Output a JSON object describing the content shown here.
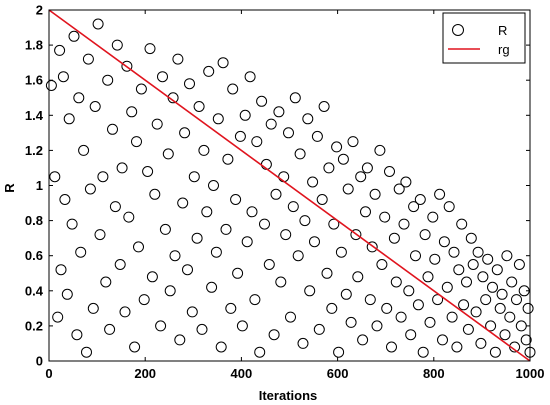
{
  "chart_data": {
    "type": "scatter",
    "title": "",
    "xlabel": "Iterations",
    "ylabel": "R",
    "xlim": [
      0,
      1000
    ],
    "ylim": [
      0,
      2
    ],
    "x_ticks": [
      0,
      200,
      400,
      600,
      800,
      1000
    ],
    "y_ticks": [
      0,
      0.2,
      0.4,
      0.6,
      0.8,
      1,
      1.2,
      1.4,
      1.6,
      1.8,
      2
    ],
    "y_tick_labels": [
      "0",
      "0.2",
      "0.4",
      "0.6",
      "0.8",
      "1",
      "1.2",
      "1.4",
      "1.6",
      "1.8",
      "2"
    ],
    "grid": false,
    "legend": {
      "position": "top-right",
      "entries": [
        "R",
        "rg"
      ]
    },
    "series": [
      {
        "name": "R",
        "kind": "scatter",
        "marker": "open-circle",
        "color": "#000000",
        "points": [
          [
            5,
            1.57
          ],
          [
            12,
            1.05
          ],
          [
            18,
            0.25
          ],
          [
            22,
            1.77
          ],
          [
            25,
            0.52
          ],
          [
            30,
            1.62
          ],
          [
            33,
            0.92
          ],
          [
            38,
            0.38
          ],
          [
            42,
            1.38
          ],
          [
            48,
            0.78
          ],
          [
            52,
            1.85
          ],
          [
            58,
            0.15
          ],
          [
            62,
            1.5
          ],
          [
            66,
            0.62
          ],
          [
            72,
            1.2
          ],
          [
            78,
            0.05
          ],
          [
            82,
            1.72
          ],
          [
            86,
            0.98
          ],
          [
            92,
            0.3
          ],
          [
            96,
            1.45
          ],
          [
            102,
            1.92
          ],
          [
            106,
            0.72
          ],
          [
            112,
            1.05
          ],
          [
            118,
            0.45
          ],
          [
            122,
            1.6
          ],
          [
            126,
            0.18
          ],
          [
            132,
            1.32
          ],
          [
            138,
            0.88
          ],
          [
            142,
            1.8
          ],
          [
            148,
            0.55
          ],
          [
            152,
            1.1
          ],
          [
            158,
            0.28
          ],
          [
            162,
            1.68
          ],
          [
            166,
            0.82
          ],
          [
            172,
            1.42
          ],
          [
            178,
            0.08
          ],
          [
            182,
            1.25
          ],
          [
            186,
            0.65
          ],
          [
            192,
            1.55
          ],
          [
            198,
            0.35
          ],
          [
            205,
            1.08
          ],
          [
            210,
            1.78
          ],
          [
            215,
            0.48
          ],
          [
            220,
            0.95
          ],
          [
            225,
            1.35
          ],
          [
            232,
            0.2
          ],
          [
            236,
            1.62
          ],
          [
            242,
            0.75
          ],
          [
            248,
            1.18
          ],
          [
            252,
            0.4
          ],
          [
            258,
            1.5
          ],
          [
            262,
            0.6
          ],
          [
            268,
            1.72
          ],
          [
            272,
            0.12
          ],
          [
            278,
            0.9
          ],
          [
            282,
            1.3
          ],
          [
            288,
            0.52
          ],
          [
            292,
            1.58
          ],
          [
            298,
            0.28
          ],
          [
            302,
            1.05
          ],
          [
            308,
            0.7
          ],
          [
            312,
            1.45
          ],
          [
            318,
            0.18
          ],
          [
            322,
            1.2
          ],
          [
            328,
            0.85
          ],
          [
            332,
            1.65
          ],
          [
            338,
            0.42
          ],
          [
            342,
            1.0
          ],
          [
            348,
            0.62
          ],
          [
            352,
            1.38
          ],
          [
            358,
            0.08
          ],
          [
            362,
            1.7
          ],
          [
            368,
            0.75
          ],
          [
            372,
            1.15
          ],
          [
            378,
            0.3
          ],
          [
            382,
            1.55
          ],
          [
            388,
            0.92
          ],
          [
            392,
            0.5
          ],
          [
            398,
            1.28
          ],
          [
            402,
            0.2
          ],
          [
            408,
            1.4
          ],
          [
            412,
            0.68
          ],
          [
            418,
            1.62
          ],
          [
            422,
            0.85
          ],
          [
            428,
            0.35
          ],
          [
            432,
            1.25
          ],
          [
            438,
            0.05
          ],
          [
            442,
            1.48
          ],
          [
            448,
            0.78
          ],
          [
            452,
            1.12
          ],
          [
            458,
            0.55
          ],
          [
            462,
            1.35
          ],
          [
            468,
            0.15
          ],
          [
            472,
            0.95
          ],
          [
            478,
            1.42
          ],
          [
            482,
            0.45
          ],
          [
            488,
            1.05
          ],
          [
            492,
            0.72
          ],
          [
            498,
            1.3
          ],
          [
            502,
            0.25
          ],
          [
            508,
            0.88
          ],
          [
            512,
            1.5
          ],
          [
            518,
            0.6
          ],
          [
            522,
            1.18
          ],
          [
            528,
            0.1
          ],
          [
            532,
            0.8
          ],
          [
            538,
            1.38
          ],
          [
            542,
            0.4
          ],
          [
            548,
            1.02
          ],
          [
            552,
            0.68
          ],
          [
            558,
            1.28
          ],
          [
            562,
            0.18
          ],
          [
            568,
            0.92
          ],
          [
            572,
            1.45
          ],
          [
            578,
            0.5
          ],
          [
            582,
            1.1
          ],
          [
            588,
            0.3
          ],
          [
            592,
            0.78
          ],
          [
            598,
            1.22
          ],
          [
            602,
            0.05
          ],
          [
            608,
            0.62
          ],
          [
            612,
            1.15
          ],
          [
            618,
            0.38
          ],
          [
            622,
            0.98
          ],
          [
            628,
            0.22
          ],
          [
            632,
            1.25
          ],
          [
            638,
            0.72
          ],
          [
            642,
            0.48
          ],
          [
            648,
            1.05
          ],
          [
            652,
            0.12
          ],
          [
            658,
            0.85
          ],
          [
            662,
            1.1
          ],
          [
            668,
            0.35
          ],
          [
            672,
            0.65
          ],
          [
            678,
            0.95
          ],
          [
            682,
            0.2
          ],
          [
            688,
            1.2
          ],
          [
            692,
            0.55
          ],
          [
            698,
            0.82
          ],
          [
            702,
            0.3
          ],
          [
            708,
            1.08
          ],
          [
            712,
            0.08
          ],
          [
            718,
            0.7
          ],
          [
            722,
            0.45
          ],
          [
            728,
            0.98
          ],
          [
            732,
            0.25
          ],
          [
            738,
            0.78
          ],
          [
            742,
            1.02
          ],
          [
            748,
            0.4
          ],
          [
            752,
            0.15
          ],
          [
            758,
            0.88
          ],
          [
            762,
            0.6
          ],
          [
            768,
            0.32
          ],
          [
            772,
            0.92
          ],
          [
            778,
            0.05
          ],
          [
            782,
            0.72
          ],
          [
            788,
            0.48
          ],
          [
            792,
            0.22
          ],
          [
            798,
            0.82
          ],
          [
            802,
            0.58
          ],
          [
            808,
            0.35
          ],
          [
            812,
            0.95
          ],
          [
            818,
            0.12
          ],
          [
            822,
            0.68
          ],
          [
            828,
            0.42
          ],
          [
            832,
            0.88
          ],
          [
            838,
            0.25
          ],
          [
            842,
            0.62
          ],
          [
            848,
            0.08
          ],
          [
            852,
            0.52
          ],
          [
            858,
            0.78
          ],
          [
            862,
            0.32
          ],
          [
            868,
            0.45
          ],
          [
            872,
            0.18
          ],
          [
            878,
            0.7
          ],
          [
            882,
            0.55
          ],
          [
            888,
            0.28
          ],
          [
            892,
            0.62
          ],
          [
            898,
            0.1
          ],
          [
            902,
            0.48
          ],
          [
            908,
            0.35
          ],
          [
            912,
            0.58
          ],
          [
            918,
            0.2
          ],
          [
            922,
            0.42
          ],
          [
            928,
            0.05
          ],
          [
            932,
            0.52
          ],
          [
            938,
            0.3
          ],
          [
            942,
            0.38
          ],
          [
            948,
            0.15
          ],
          [
            952,
            0.6
          ],
          [
            958,
            0.25
          ],
          [
            962,
            0.45
          ],
          [
            968,
            0.08
          ],
          [
            972,
            0.35
          ],
          [
            978,
            0.55
          ],
          [
            982,
            0.2
          ],
          [
            988,
            0.4
          ],
          [
            992,
            0.12
          ],
          [
            996,
            0.3
          ],
          [
            1000,
            0.05
          ]
        ]
      },
      {
        "name": "rg",
        "kind": "line",
        "color": "#e0141e",
        "x": [
          0,
          1000
        ],
        "y": [
          2,
          0
        ]
      }
    ]
  }
}
